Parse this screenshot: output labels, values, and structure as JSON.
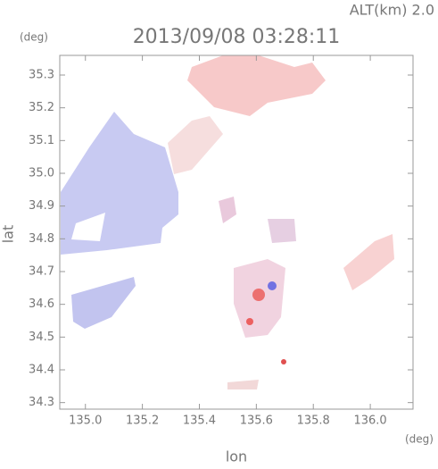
{
  "chart_data": {
    "type": "map",
    "title": "2013/09/08 03:28:11",
    "subtitle": "ALT(km) 2.0",
    "x_label": "lon",
    "x_unit": "(deg)",
    "y_label": "lat",
    "y_unit": "(deg)",
    "xlim": [
      134.91,
      136.15
    ],
    "xticks": [
      {
        "value": 135.0,
        "label": "135.0"
      },
      135.2,
      135.4,
      135.6,
      135.8,
      {
        "value": 136.0,
        "label": "136.0"
      }
    ],
    "ylim": [
      34.28,
      35.36
    ],
    "yticks": [
      34.3,
      34.4,
      34.5,
      34.6,
      34.7,
      34.8,
      34.9,
      {
        "value": 35.0,
        "label": "35.0"
      },
      35.1,
      35.2,
      35.3
    ]
  }
}
